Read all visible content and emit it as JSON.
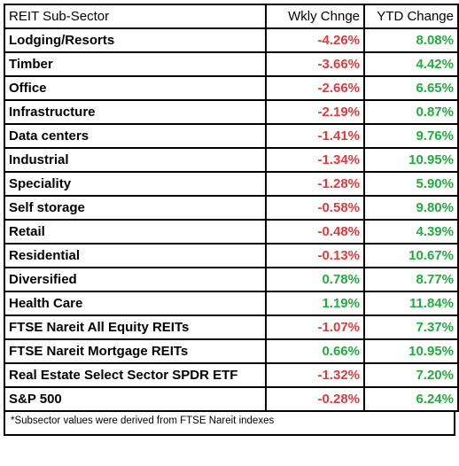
{
  "table": {
    "headers": [
      "REIT Sub-Sector",
      "Wkly Chnge",
      "YTD Change"
    ],
    "rows": [
      {
        "name": "Lodging/Resorts",
        "weekly": "-4.26%",
        "ytd": "8.08%"
      },
      {
        "name": "Timber",
        "weekly": "-3.66%",
        "ytd": "4.42%"
      },
      {
        "name": "Office",
        "weekly": "-2.66%",
        "ytd": "6.65%"
      },
      {
        "name": "Infrastructure",
        "weekly": "-2.19%",
        "ytd": "0.87%"
      },
      {
        "name": "Data centers",
        "weekly": "-1.41%",
        "ytd": "9.76%"
      },
      {
        "name": "Industrial",
        "weekly": "-1.34%",
        "ytd": "10.95%"
      },
      {
        "name": "Speciality",
        "weekly": "-1.28%",
        "ytd": "5.90%"
      },
      {
        "name": "Self storage",
        "weekly": "-0.58%",
        "ytd": "9.80%"
      },
      {
        "name": "Retail",
        "weekly": "-0.48%",
        "ytd": "4.39%"
      },
      {
        "name": "Residential",
        "weekly": "-0.13%",
        "ytd": "10.67%"
      },
      {
        "name": "Diversified",
        "weekly": "0.78%",
        "ytd": "8.77%"
      },
      {
        "name": "Health Care",
        "weekly": "1.19%",
        "ytd": "11.84%"
      },
      {
        "name": "FTSE Nareit All Equity REITs",
        "weekly": "-1.07%",
        "ytd": "7.37%"
      },
      {
        "name": "FTSE Nareit Mortgage REITs",
        "weekly": "0.66%",
        "ytd": "10.95%"
      },
      {
        "name": "Real Estate Select Sector SPDR ETF",
        "weekly": "-1.32%",
        "ytd": "7.20%"
      },
      {
        "name": "S&P 500",
        "weekly": "-0.28%",
        "ytd": "6.24%"
      }
    ]
  },
  "footnote": "*Subsector values were derived from FTSE Nareit indexes",
  "colors": {
    "negative": "#e8383b",
    "positive": "#1fae3d",
    "border": "#000000"
  }
}
